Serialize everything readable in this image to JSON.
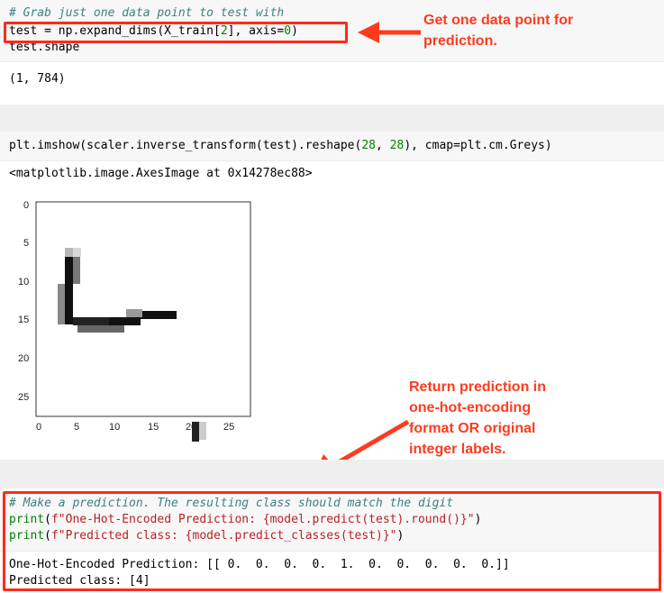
{
  "cell1": {
    "lines": [
      "# Grab just one data point to test with",
      "test = np.expand_dims(X_train[2], axis=0)",
      "test.shape"
    ],
    "output": "(1, 784)"
  },
  "annotations": {
    "a1": [
      "Get one data point for",
      "prediction."
    ],
    "a2": [
      "Return prediction in",
      "one-hot-encoding",
      "format OR original",
      "integer labels."
    ]
  },
  "cell2": {
    "code": "plt.imshow(scaler.inverse_transform(test).reshape(28, 28), cmap=plt.cm.Greys)",
    "output": "<matplotlib.image.AxesImage at 0x14278ec88>"
  },
  "plot": {
    "yticks": [
      "0",
      "5",
      "10",
      "15",
      "20",
      "25"
    ],
    "xticks": [
      "0",
      "5",
      "10",
      "15",
      "20",
      "25"
    ]
  },
  "cell3": {
    "comment": "# Make a prediction. The resulting class should match the digit",
    "line2": "print(f\"One-Hot-Encoded Prediction: {model.predict(test).round()}\")",
    "line3": "print(f\"Predicted class: {model.predict_classes(test)}\")",
    "out1": "One-Hot-Encoded Prediction: [[ 0.  0.  0.  0.  1.  0.  0.  0.  0.  0.]]",
    "out2": "Predicted class: [4]"
  },
  "colors": {
    "accent": "#ff2a1a",
    "annotation": "#ff3b1f"
  }
}
